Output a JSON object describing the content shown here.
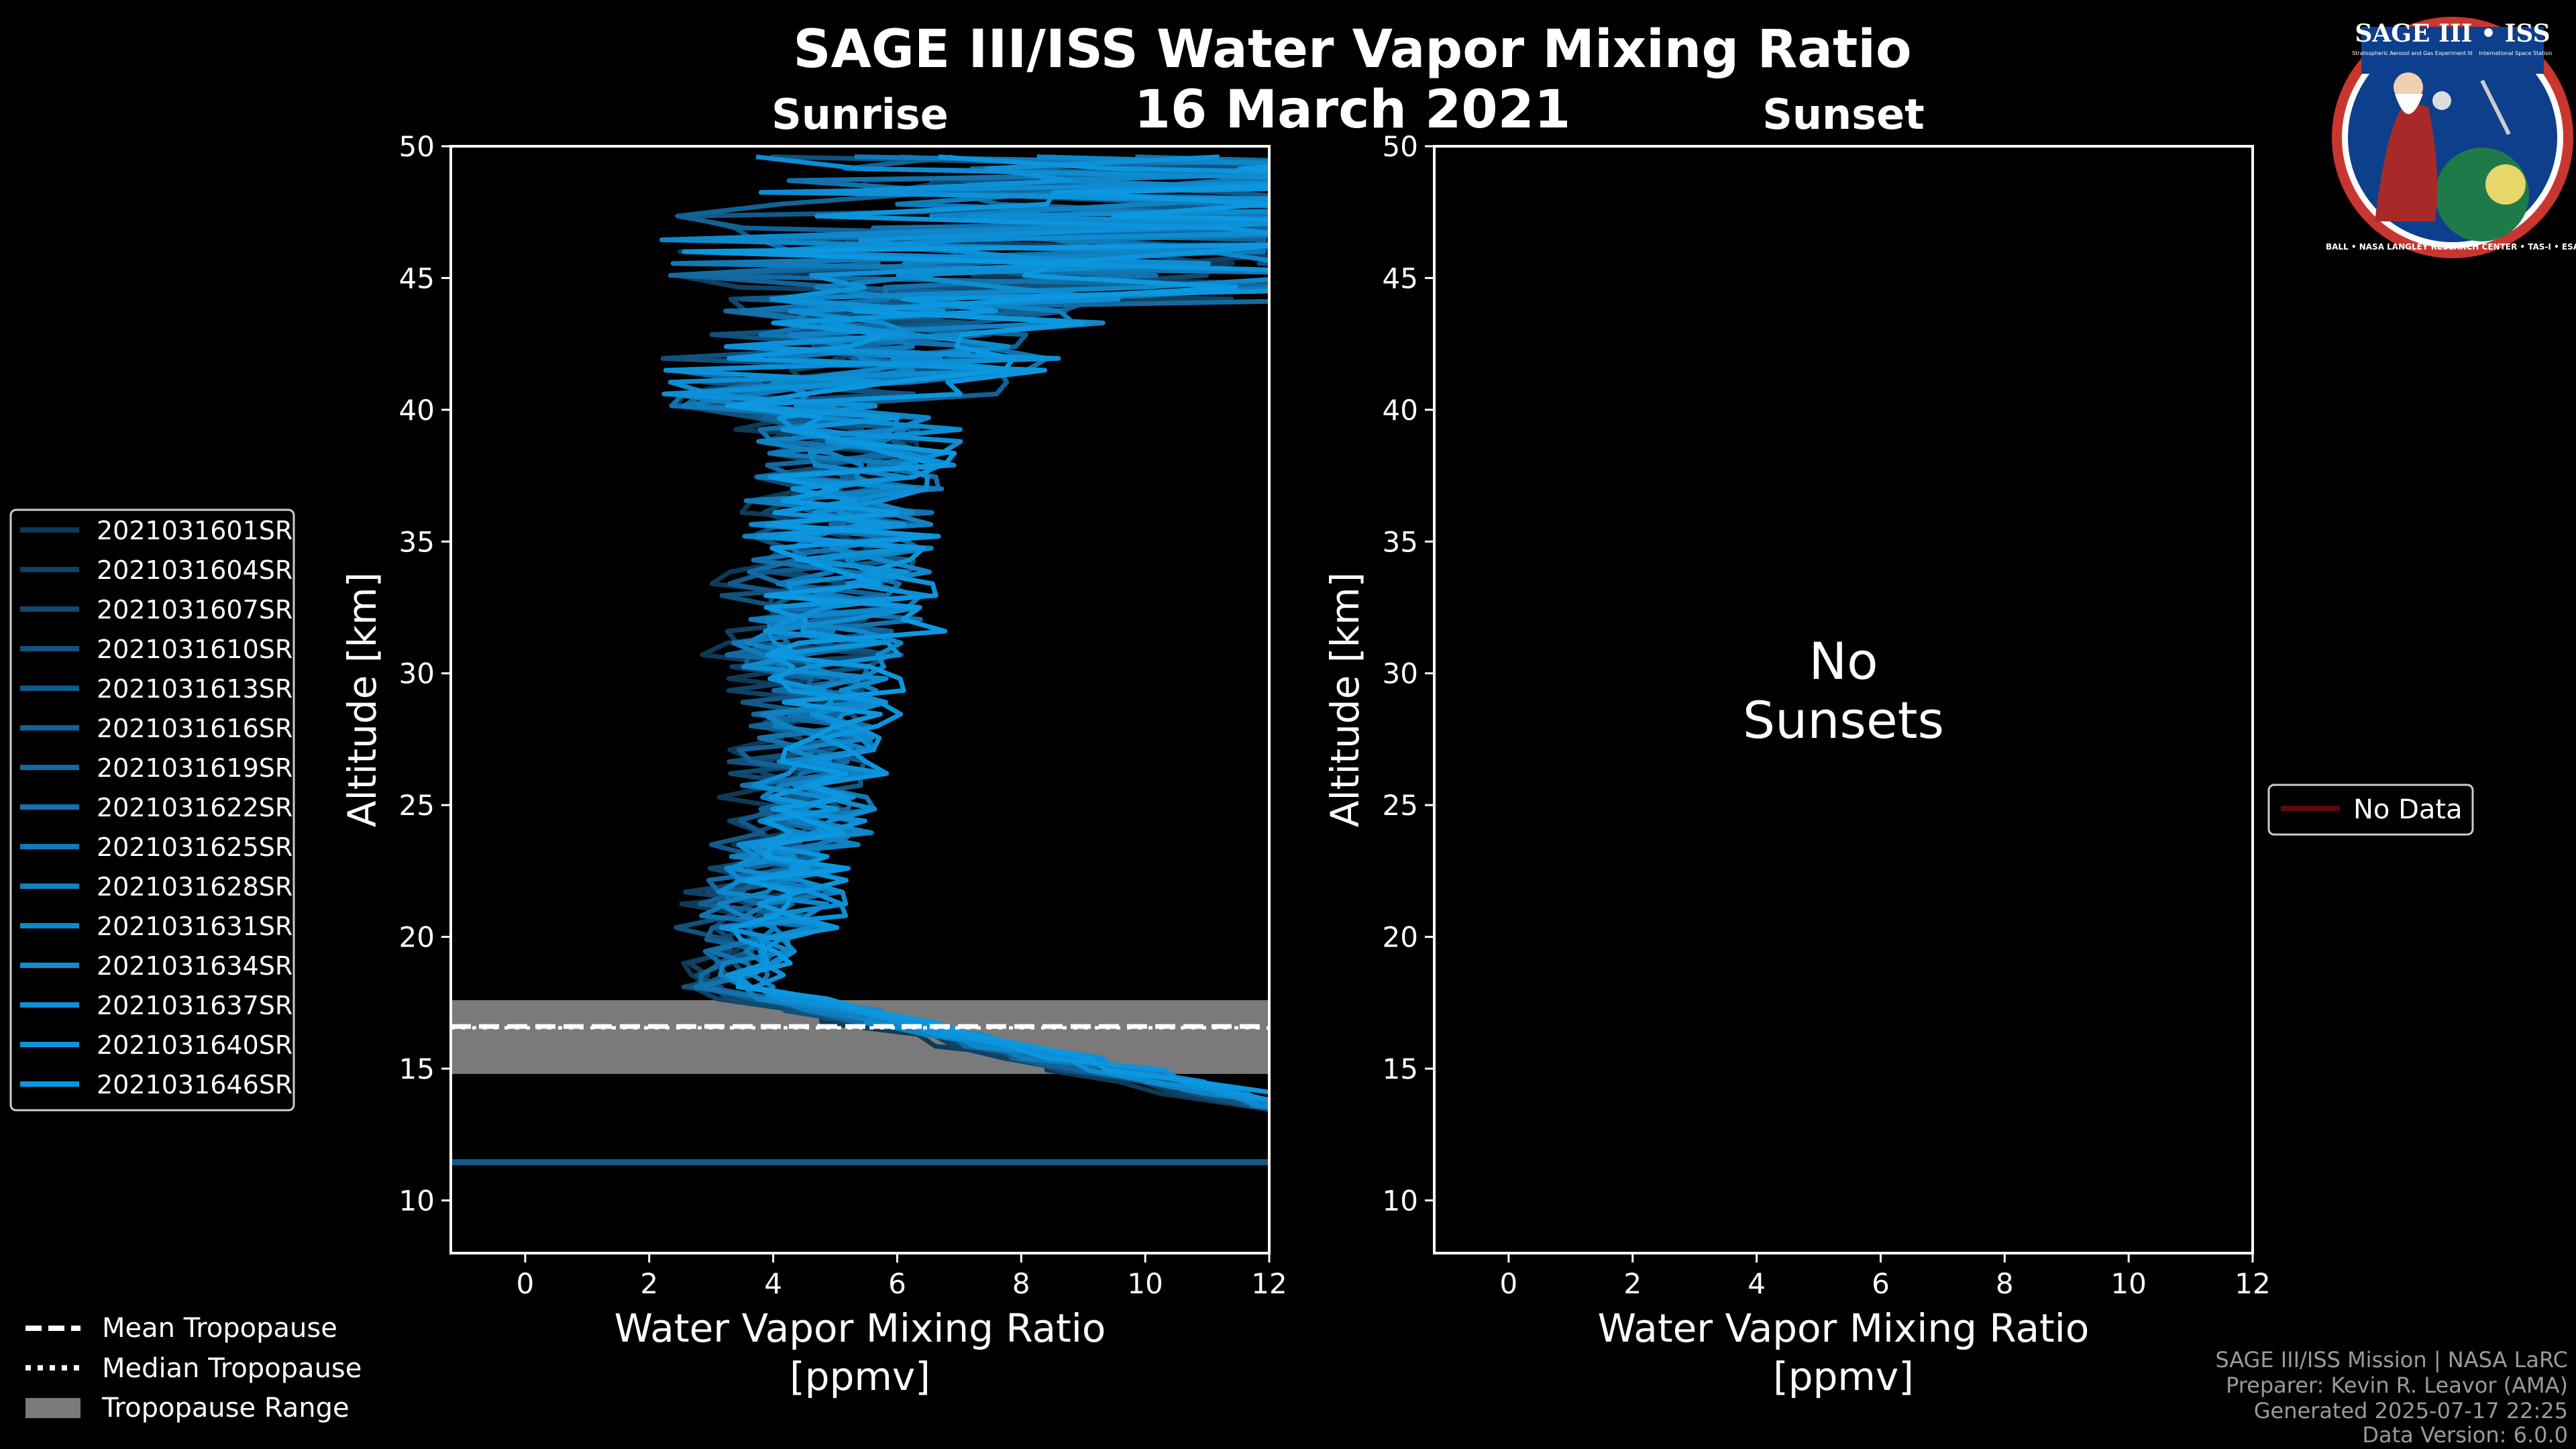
{
  "figure": {
    "title": "SAGE III/ISS Water Vapor Mixing Ratio",
    "date": "16 March 2021",
    "colors": {
      "background": "#000000",
      "text": "#ffffff",
      "sunrise_line": "#0a8fd6",
      "tropo_band": "#7a7a7a",
      "no_data": "#5a0a0a"
    }
  },
  "footer": {
    "mission": "SAGE III/ISS Mission | NASA LaRC",
    "preparer": "Preparer: Kevin R. Leavor (AMA)",
    "generated": "Generated 2025-07-17 22:25",
    "version": "Data Version: 6.0.0"
  },
  "logo": {
    "top_text": "SAGE III • ISS",
    "sub_left": "Stratospheric Aerosol and Gas Experiment III",
    "sub_right": "International Space Station",
    "bottom_text": "BALL • NASA LANGLEY RESEARCH CENTER • TAS-I • ESA",
    "icon": "sage-mission-patch-icon"
  },
  "legend_bottom": {
    "items": [
      {
        "label": "Mean Tropopause",
        "style": "dashed"
      },
      {
        "label": "Median Tropopause",
        "style": "dotted"
      },
      {
        "label": "Tropopause Range",
        "style": "band"
      }
    ]
  },
  "legend_sunset": {
    "label": "No Data"
  },
  "chart_data": [
    {
      "type": "line",
      "panel": "sunrise",
      "subtitle": "Sunrise",
      "xlabel": "Water Vapor Mixing Ratio",
      "xlabel_unit": "[ppmv]",
      "ylabel": "Altitude [km]",
      "xlim": [
        -1.2,
        12
      ],
      "ylim": [
        8,
        50
      ],
      "xticks": [
        0,
        2,
        4,
        6,
        8,
        10,
        12
      ],
      "yticks": [
        10,
        15,
        20,
        25,
        30,
        35,
        40,
        45,
        50
      ],
      "tropopause": {
        "mean": 16.6,
        "median": 16.55,
        "range": [
          14.8,
          17.6
        ]
      },
      "series": [
        {
          "name": "2021031601SR",
          "color": "#0e3a56"
        },
        {
          "name": "2021031604SR",
          "color": "#0f4263"
        },
        {
          "name": "2021031607SR",
          "color": "#104a70"
        },
        {
          "name": "2021031610SR",
          "color": "#11527d"
        },
        {
          "name": "2021031613SR",
          "color": "#125a8a"
        },
        {
          "name": "2021031616SR",
          "color": "#136297"
        },
        {
          "name": "2021031619SR",
          "color": "#136aa3"
        },
        {
          "name": "2021031622SR",
          "color": "#1272ae"
        },
        {
          "name": "2021031625SR",
          "color": "#117ab9"
        },
        {
          "name": "2021031628SR",
          "color": "#1081c2"
        },
        {
          "name": "2021031631SR",
          "color": "#0f87ca"
        },
        {
          "name": "2021031634SR",
          "color": "#0e8cd1"
        },
        {
          "name": "2021031637SR",
          "color": "#0d90d7"
        },
        {
          "name": "2021031640SR",
          "color": "#0c94dc"
        },
        {
          "name": "2021031646SR",
          "color": "#0b98e0"
        }
      ]
    },
    {
      "type": "line",
      "panel": "sunset",
      "subtitle": "Sunset",
      "xlabel": "Water Vapor Mixing Ratio",
      "xlabel_unit": "[ppmv]",
      "ylabel": "Altitude [km]",
      "xlim": [
        -1.2,
        12
      ],
      "ylim": [
        8,
        50
      ],
      "xticks": [
        0,
        2,
        4,
        6,
        8,
        10,
        12
      ],
      "yticks": [
        10,
        15,
        20,
        25,
        30,
        35,
        40,
        45,
        50
      ],
      "annotation_line1": "No",
      "annotation_line2": "Sunsets",
      "series": []
    }
  ]
}
